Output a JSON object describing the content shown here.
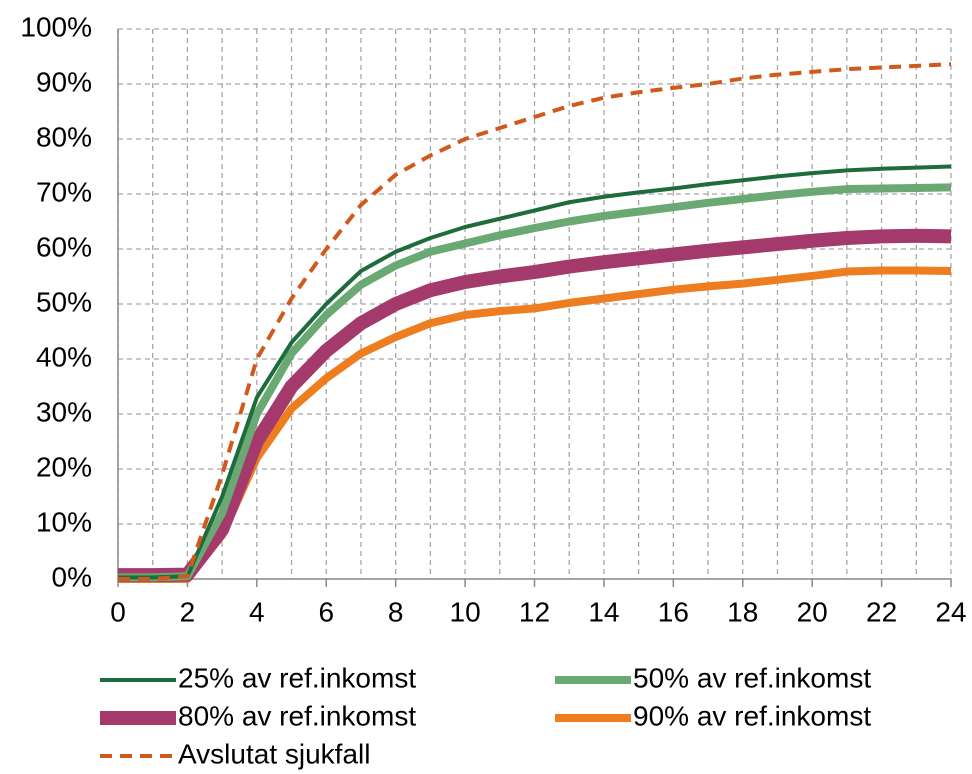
{
  "chart_data": {
    "type": "line",
    "x": [
      0,
      1,
      2,
      3,
      4,
      5,
      6,
      7,
      8,
      9,
      10,
      11,
      12,
      13,
      14,
      15,
      16,
      17,
      18,
      19,
      20,
      21,
      22,
      23,
      24
    ],
    "xlim": [
      0,
      24
    ],
    "xticks": [
      0,
      2,
      4,
      6,
      8,
      10,
      12,
      14,
      16,
      18,
      20,
      22,
      24
    ],
    "ylim": [
      0,
      100
    ],
    "yticks": [
      {
        "value": 0,
        "label": "0%"
      },
      {
        "value": 10,
        "label": "10%"
      },
      {
        "value": 20,
        "label": "20%"
      },
      {
        "value": 30,
        "label": "30%"
      },
      {
        "value": 40,
        "label": "40%"
      },
      {
        "value": 50,
        "label": "50%"
      },
      {
        "value": 60,
        "label": "60%"
      },
      {
        "value": 70,
        "label": "70%"
      },
      {
        "value": 80,
        "label": "80%"
      },
      {
        "value": 90,
        "label": "90%"
      },
      {
        "value": 100,
        "label": "100%"
      }
    ],
    "grid": true,
    "legend": "bottom",
    "series": [
      {
        "name": "25% av ref.inkomst",
        "color": "#1e6b3c",
        "values": [
          0.3,
          0.3,
          0.5,
          15,
          33,
          43,
          50,
          56,
          59.5,
          62,
          64,
          65.5,
          67,
          68.5,
          69.5,
          70.3,
          71,
          71.8,
          72.5,
          73.2,
          73.8,
          74.3,
          74.6,
          74.8,
          75
        ]
      },
      {
        "name": "50% av ref.inkomst",
        "color": "#6aa874",
        "values": [
          0.3,
          0.3,
          0.5,
          12,
          30,
          41,
          48,
          53.5,
          57,
          59.5,
          61,
          62.5,
          63.8,
          65,
          66,
          66.8,
          67.6,
          68.4,
          69.1,
          69.8,
          70.4,
          70.9,
          71,
          71.1,
          71.2
        ]
      },
      {
        "name": "80% av ref.inkomst",
        "color": "#a33a6b",
        "values": [
          0.7,
          0.7,
          0.8,
          9,
          25,
          35,
          41.5,
          46.5,
          50,
          52.5,
          54,
          55,
          55.8,
          56.8,
          57.6,
          58.3,
          59,
          59.7,
          60.3,
          60.9,
          61.5,
          62,
          62.3,
          62.4,
          62.3
        ]
      },
      {
        "name": "90% av ref.inkomst",
        "color": "#ed7d1f",
        "values": [
          0,
          0,
          0,
          8,
          22,
          31,
          36.5,
          41,
          44,
          46.5,
          48,
          48.7,
          49.2,
          50.2,
          51,
          51.8,
          52.6,
          53.2,
          53.7,
          54.4,
          55.1,
          55.9,
          56.1,
          56.1,
          56
        ]
      },
      {
        "name": "Avslutat sjukfall",
        "color": "#d05a1c",
        "dash": true,
        "values": [
          0,
          0,
          0.5,
          19,
          40,
          51,
          60,
          68,
          73.5,
          77,
          80,
          82,
          84,
          86,
          87.5,
          88.5,
          89.3,
          90,
          91,
          91.7,
          92.2,
          92.7,
          93,
          93.3,
          93.6
        ]
      }
    ]
  }
}
